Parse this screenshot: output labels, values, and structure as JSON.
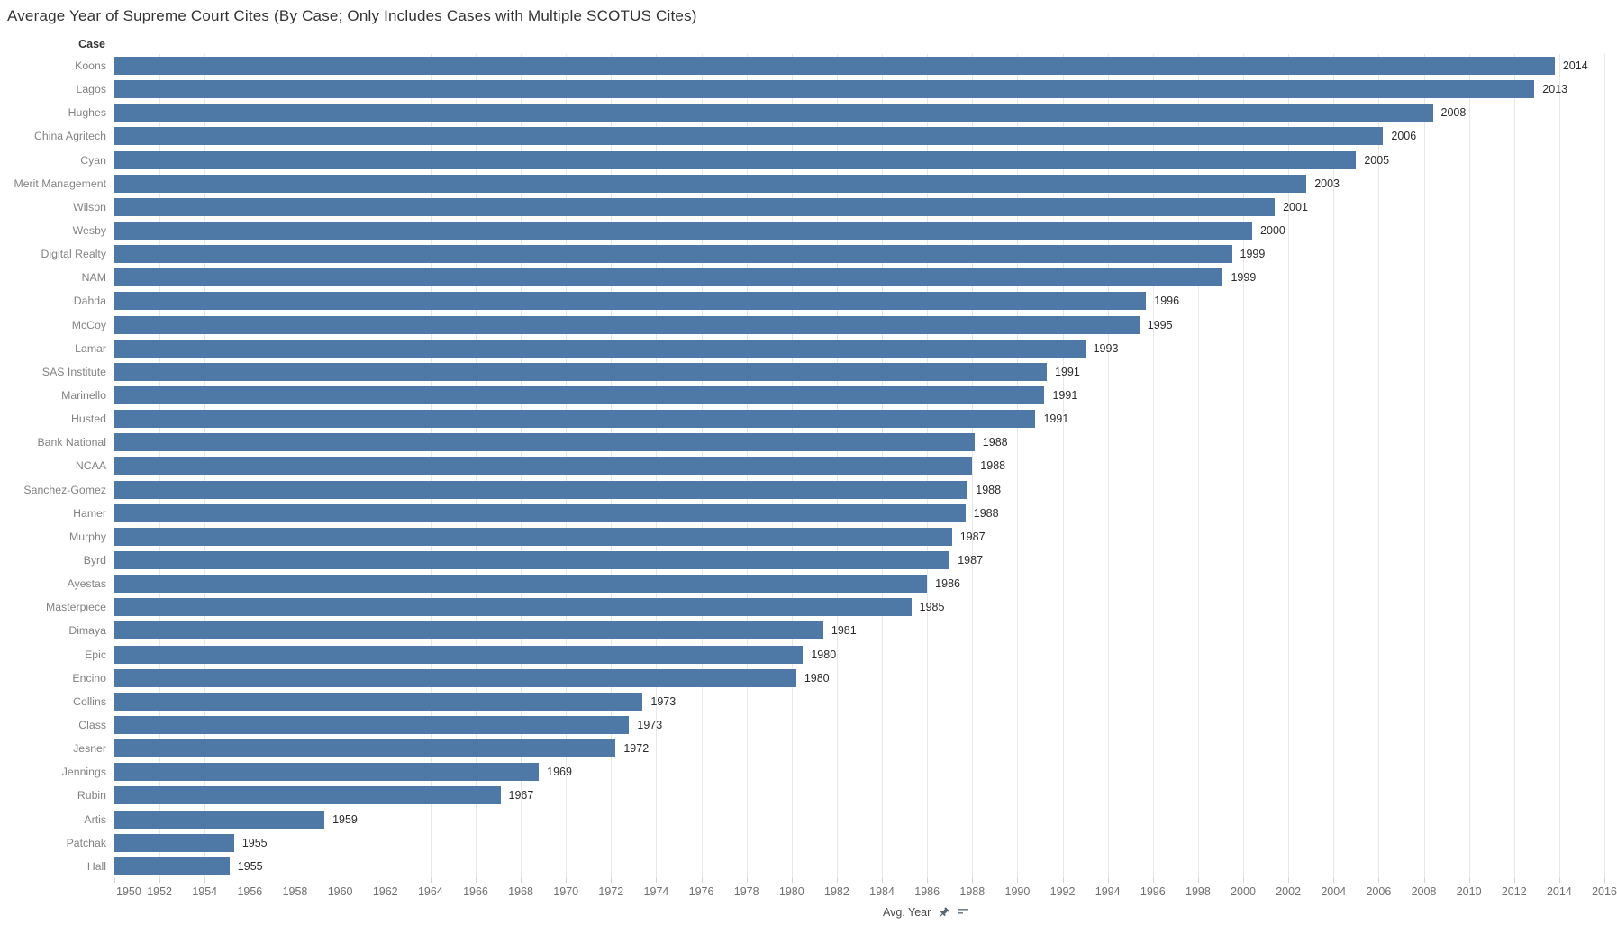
{
  "title": "Average Year of Supreme Court Cites (By Case; Only Includes Cases with Multiple SCOTUS Cites)",
  "column_header": "Case",
  "axis_title": "Avg. Year",
  "icons": {
    "pin": "pin-icon",
    "sort": "sort-descending-icon"
  },
  "colors": {
    "bar": "#4e79a7",
    "gridline": "#e8e8e8",
    "title_text": "#333333",
    "case_label_text": "#828282",
    "tick_label_text": "#6f6f6f",
    "value_label_text": "#2b2b2b",
    "pin_icon": "#56646f",
    "sort_icon": "#737f8a"
  },
  "chart_data": {
    "type": "bar",
    "orientation": "horizontal",
    "title": "Average Year of Supreme Court Cites (By Case; Only Includes Cases with Multiple SCOTUS Cites)",
    "xlabel": "Avg. Year",
    "ylabel": "Case",
    "xlim": [
      1950,
      2016
    ],
    "x_ticks": [
      1950,
      1952,
      1954,
      1956,
      1958,
      1960,
      1962,
      1964,
      1966,
      1968,
      1970,
      1972,
      1974,
      1976,
      1978,
      1980,
      1982,
      1984,
      1986,
      1988,
      1990,
      1992,
      1994,
      1996,
      1998,
      2000,
      2002,
      2004,
      2006,
      2008,
      2010,
      2012,
      2014,
      2016
    ],
    "grid": "vertical gridlines at every 2-year tick",
    "legend": "none",
    "bar_color": "#4e79a7",
    "categories": [
      "Koons",
      "Lagos",
      "Hughes",
      "China Agritech",
      "Cyan",
      "Merit Management",
      "Wilson",
      "Wesby",
      "Digital Realty",
      "NAM",
      "Dahda",
      "McCoy",
      "Lamar",
      "SAS Institute",
      "Marinello",
      "Husted",
      "Bank National",
      "NCAA",
      "Sanchez-Gomez",
      "Hamer",
      "Murphy",
      "Byrd",
      "Ayestas",
      "Masterpiece",
      "Dimaya",
      "Epic",
      "Encino",
      "Collins",
      "Class",
      "Jesner",
      "Jennings",
      "Rubin",
      "Artis",
      "Patchak",
      "Hall"
    ],
    "values": [
      2013.8,
      2012.9,
      2008.4,
      2006.2,
      2005.0,
      2002.8,
      2001.4,
      2000.4,
      1999.5,
      1999.1,
      1995.7,
      1995.4,
      1993.0,
      1991.3,
      1991.2,
      1990.8,
      1988.1,
      1988.0,
      1987.8,
      1987.7,
      1987.1,
      1987.0,
      1986.0,
      1985.3,
      1981.4,
      1980.5,
      1980.2,
      1973.4,
      1972.8,
      1972.2,
      1968.8,
      1967.1,
      1959.3,
      1955.3,
      1955.1
    ],
    "value_labels": [
      "2014",
      "2013",
      "2008",
      "2006",
      "2005",
      "2003",
      "2001",
      "2000",
      "1999",
      "1999",
      "1996",
      "1995",
      "1993",
      "1991",
      "1991",
      "1991",
      "1988",
      "1988",
      "1988",
      "1988",
      "1987",
      "1987",
      "1986",
      "1985",
      "1981",
      "1980",
      "1980",
      "1973",
      "1973",
      "1972",
      "1969",
      "1967",
      "1959",
      "1955",
      "1955"
    ]
  }
}
